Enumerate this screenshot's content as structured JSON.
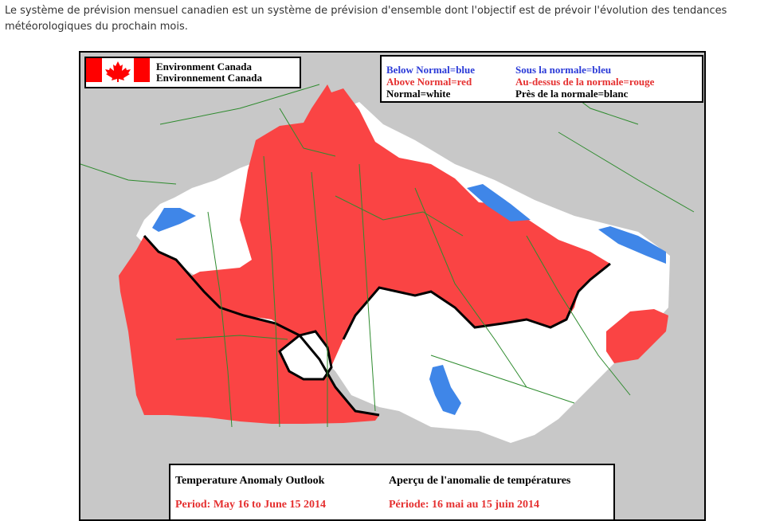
{
  "intro_text": "Le système de prévision mensuel canadien est un système de prévision d'ensemble dont l'objectif est de prévoir l'évolution des tendances météorologiques du prochain mois.",
  "map": {
    "org_en": "Environment Canada",
    "org_fr": "Environnement Canada",
    "legend": {
      "below_en": "Below Normal=blue",
      "above_en": "Above Normal=red",
      "normal_en": "Normal=white",
      "below_fr": "Sous la normale=bleu",
      "above_fr": "Au-dessus de la normale=rouge",
      "normal_fr": "Près de la normale=blanc"
    },
    "title_en": "Temperature Anomaly Outlook",
    "title_fr": "Aperçu de l'anomalie de températures",
    "period_en": "Period: May 16 to June 15 2014",
    "period_fr": "Période: 16 mai au 15 juin 2014",
    "colors": {
      "below": "#3f86e8",
      "above": "#fa4444",
      "normal": "#ffffff",
      "land": "#c8c8c8",
      "boundary": "#2e8b2e",
      "flag_red": "#ff0000"
    },
    "icons": [
      "canada-flag-icon"
    ]
  }
}
